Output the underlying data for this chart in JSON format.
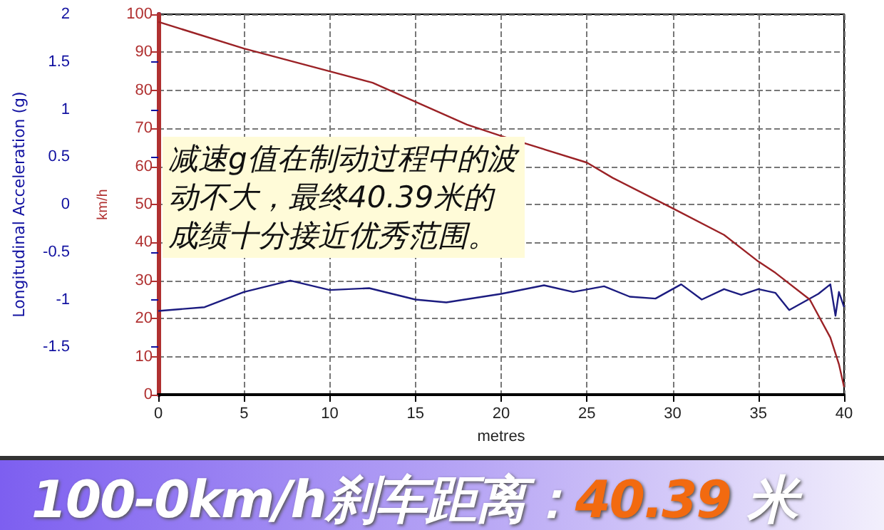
{
  "chart_data": {
    "type": "line",
    "title": "100-0km/h刹车距离：40.39 米",
    "xlabel": "metres",
    "ylabel": "Longitudinal Acceleration (g)",
    "y2label": "km/h",
    "annotations": [
      "减速g值在制动过程中的波动不大，最终40.39米的成绩十分接近优秀范围。"
    ],
    "xlim": [
      0,
      40
    ],
    "xticks": [
      0,
      5,
      10,
      15,
      20,
      25,
      30,
      35,
      40
    ],
    "ylim": [
      -2,
      2
    ],
    "yticks": [
      -1.5,
      -1,
      -0.5,
      0,
      0.5,
      1,
      1.5,
      2
    ],
    "y2lim": [
      0,
      100
    ],
    "y2ticks": [
      0,
      10,
      20,
      30,
      40,
      50,
      60,
      70,
      80,
      90,
      100
    ],
    "grid": true,
    "marker": "none",
    "series": [
      {
        "color": "#1c1c80",
        "x": [
          0,
          2.7,
          5,
          7.7,
          10,
          12.3,
          15,
          16.8,
          20,
          22.5,
          24.2,
          26,
          27.5,
          29,
          30.5,
          31.7,
          33,
          34,
          35,
          36,
          36.8,
          38.5,
          39.2,
          39.5,
          39.7,
          40
        ],
        "values": [
          -1.12,
          -1.08,
          -0.92,
          -0.8,
          -0.9,
          -0.88,
          -1.0,
          -1.03,
          -0.94,
          -0.85,
          -0.92,
          -0.86,
          -0.97,
          -0.99,
          -0.84,
          -1.0,
          -0.89,
          -0.95,
          -0.89,
          -0.93,
          -1.11,
          -0.94,
          -0.84,
          -1.17,
          -0.92,
          -1.08
        ]
      },
      {
        "color": "#9b2226",
        "axis": "y2",
        "x": [
          0,
          5,
          10,
          12.5,
          15,
          18,
          20,
          25,
          26.5,
          30,
          33,
          35,
          36,
          38,
          39.2,
          39.7,
          40
        ],
        "values": [
          98,
          91,
          85,
          82,
          77,
          71,
          68,
          61,
          57,
          49,
          42,
          35,
          32,
          25,
          15,
          8,
          2
        ]
      }
    ]
  }
}
